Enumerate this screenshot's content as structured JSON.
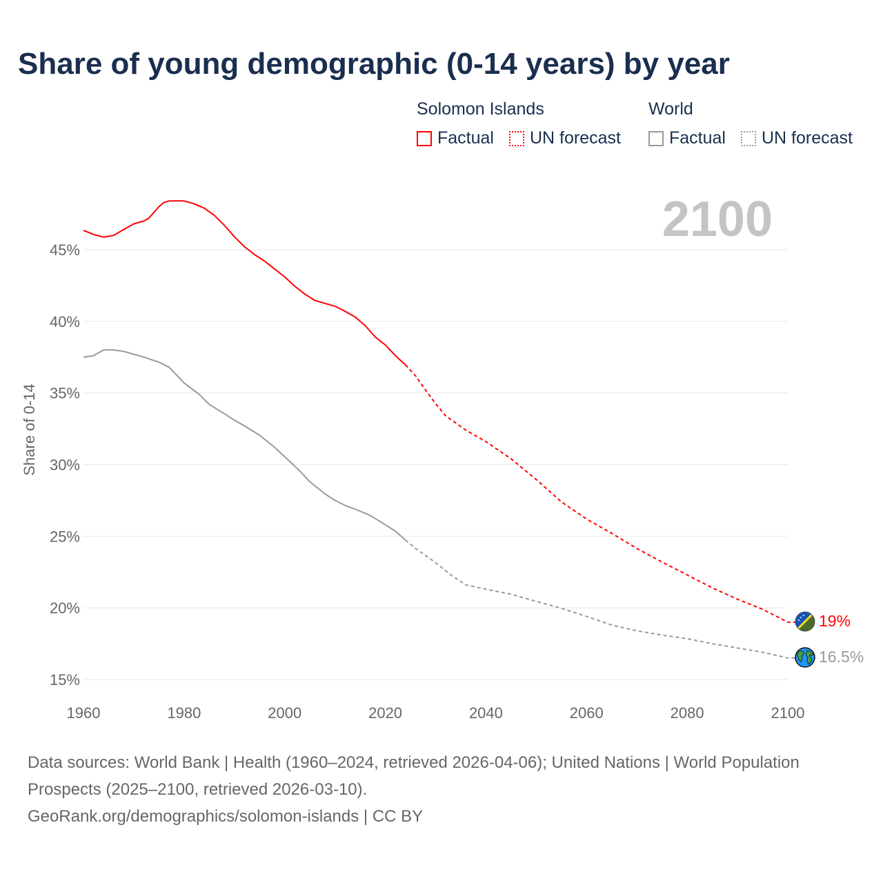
{
  "title": "Share of young demographic (0-14 years) by year",
  "legend": {
    "groups": [
      {
        "name": "Solomon Islands",
        "color": "#ff0000",
        "factual_label": "Factual",
        "forecast_label": "UN forecast"
      },
      {
        "name": "World",
        "color": "#999999",
        "factual_label": "Factual",
        "forecast_label": "UN forecast"
      }
    ]
  },
  "year_display": "2100",
  "chart_data": {
    "type": "line",
    "title": "Share of young demographic (0-14 years) by year",
    "xlabel": "",
    "ylabel": "Share of 0-14",
    "xlim": [
      1960,
      2100
    ],
    "ylim": [
      15,
      48.5
    ],
    "x_ticks": [
      1960,
      1980,
      2000,
      2020,
      2040,
      2060,
      2080,
      2100
    ],
    "x_tick_labels": [
      "1960",
      "1980",
      "2000",
      "2020",
      "2040",
      "2060",
      "2080",
      "2100"
    ],
    "y_ticks": [
      15,
      20,
      25,
      30,
      35,
      40,
      45
    ],
    "y_tick_labels": [
      "15%",
      "20%",
      "25%",
      "30%",
      "35%",
      "40%",
      "45%"
    ],
    "grid": true,
    "forecast_start": 2024,
    "series": [
      {
        "name": "Solomon Islands",
        "color": "#ff0000",
        "end_label": "19%",
        "x": [
          1960,
          1962,
          1964,
          1966,
          1968,
          1970,
          1972,
          1973,
          1975,
          1976,
          1977,
          1980,
          1982,
          1984,
          1986,
          1988,
          1990,
          1992,
          1994,
          1996,
          1998,
          2000,
          2002,
          2004,
          2006,
          2008,
          2010,
          2012,
          2014,
          2016,
          2018,
          2020,
          2022,
          2024,
          2026,
          2028,
          2030,
          2032,
          2034,
          2036,
          2040,
          2045,
          2050,
          2055,
          2060,
          2065,
          2070,
          2075,
          2080,
          2085,
          2090,
          2095,
          2100
        ],
        "values": [
          46.35,
          46.06,
          45.87,
          46.0,
          46.4,
          46.8,
          47.0,
          47.2,
          48.0,
          48.3,
          48.4,
          48.4,
          48.2,
          47.9,
          47.4,
          46.7,
          45.9,
          45.2,
          44.66,
          44.2,
          43.65,
          43.1,
          42.45,
          41.9,
          41.45,
          41.25,
          41.05,
          40.7,
          40.3,
          39.7,
          38.9,
          38.35,
          37.6,
          36.96,
          36.2,
          35.2,
          34.25,
          33.4,
          32.9,
          32.4,
          31.6,
          30.4,
          28.96,
          27.4,
          26.2,
          25.2,
          24.15,
          23.2,
          22.3,
          21.4,
          20.6,
          19.9,
          19.0
        ]
      },
      {
        "name": "World",
        "color": "#999999",
        "end_label": "16.5%",
        "x": [
          1960,
          1962,
          1964,
          1966,
          1968,
          1970,
          1972,
          1975,
          1977,
          1980,
          1983,
          1985,
          1988,
          1990,
          1992,
          1995,
          1998,
          2000,
          2003,
          2005,
          2008,
          2010,
          2012,
          2015,
          2017,
          2020,
          2022,
          2024,
          2026,
          2030,
          2033,
          2036,
          2040,
          2045,
          2050,
          2055,
          2060,
          2065,
          2070,
          2075,
          2080,
          2085,
          2090,
          2095,
          2100
        ],
        "values": [
          37.5,
          37.6,
          38.0,
          38.0,
          37.9,
          37.7,
          37.5,
          37.15,
          36.8,
          35.7,
          34.9,
          34.2,
          33.55,
          33.1,
          32.7,
          32.05,
          31.2,
          30.55,
          29.55,
          28.8,
          27.95,
          27.5,
          27.15,
          26.75,
          26.45,
          25.8,
          25.35,
          24.73,
          24.15,
          23.15,
          22.3,
          21.6,
          21.3,
          20.95,
          20.45,
          19.97,
          19.4,
          18.8,
          18.4,
          18.1,
          17.85,
          17.5,
          17.2,
          16.9,
          16.5
        ]
      }
    ]
  },
  "footer": {
    "sources": "Data sources: World Bank | Health (1960–2024, retrieved 2026-04-06); United Nations | World Population Prospects (2025–2100, retrieved 2026-03-10).",
    "credit": "GeoRank.org/demographics/solomon-islands | CC BY"
  }
}
